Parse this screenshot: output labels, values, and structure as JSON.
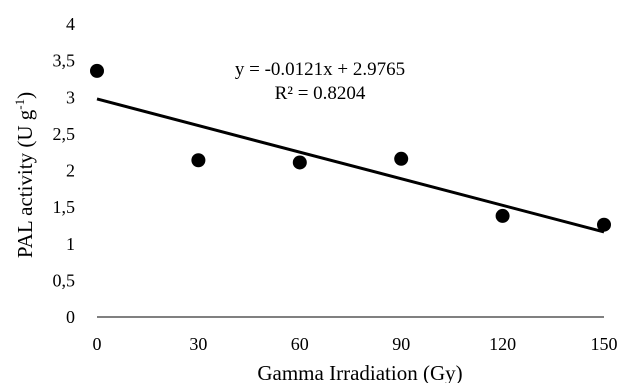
{
  "chart_data": {
    "type": "scatter",
    "title": "",
    "xlabel": "Gamma Irradiation (Gy)",
    "ylabel_main": "PAL activity (U g",
    "ylabel_sup": "-1",
    "ylabel_end": ")",
    "xlim": [
      0,
      150
    ],
    "ylim": [
      0,
      4
    ],
    "xticks": [
      0,
      30,
      60,
      90,
      120,
      150
    ],
    "xtick_labels": [
      "0",
      "30",
      "60",
      "90",
      "120",
      "150"
    ],
    "yticks": [
      0,
      0.5,
      1,
      1.5,
      2,
      2.5,
      3,
      3.5,
      4
    ],
    "ytick_labels": [
      "0",
      "0,5",
      "1",
      "1,5",
      "2",
      "2,5",
      "3",
      "3,5",
      "4"
    ],
    "grid": false,
    "series": [
      {
        "x": [
          0,
          30,
          60,
          90,
          120,
          150
        ],
        "y": [
          3.36,
          2.14,
          2.11,
          2.16,
          1.38,
          1.26
        ],
        "color": "#000000"
      }
    ],
    "trendline": {
      "slope": -0.0121,
      "intercept": 2.9765,
      "equation": "y = -0.0121x + 2.9765",
      "r_squared": "R² = 0.8204"
    }
  }
}
